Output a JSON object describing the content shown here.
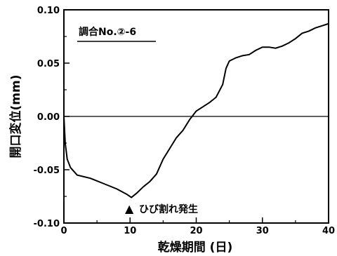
{
  "chart_data": {
    "type": "line",
    "title": "",
    "xlabel": "乾燥期間 (日)",
    "ylabel": "開口変位(mm)",
    "xlim": [
      0,
      40
    ],
    "ylim": [
      -0.1,
      0.1
    ],
    "xticks": [
      0,
      10,
      20,
      30,
      40
    ],
    "xtick_labels": [
      "0",
      "10",
      "20",
      "30",
      "40"
    ],
    "yticks": [
      -0.1,
      -0.05,
      0.0,
      0.05,
      0.1
    ],
    "ytick_labels": [
      "-0.10",
      "-0.05",
      "0.00",
      "0.05",
      "0.10"
    ],
    "grid": false,
    "reference_line_y": 0.0,
    "legend_text": "調合No.②-6",
    "annotation": {
      "marker": "▲",
      "text": "ひび割れ発生",
      "x": 10.2
    },
    "series": [
      {
        "x": [
          0,
          0.2,
          0.5,
          1.0,
          2.0,
          4.0,
          6.0,
          8.0,
          9.5,
          10.2,
          11.0,
          12.0,
          13.0,
          14.0,
          15.0,
          16.0,
          17.0,
          18.0,
          19.0,
          20.0,
          21.0,
          22.0,
          23.0,
          24.0,
          24.5,
          25.0,
          26.0,
          27.0,
          28.0,
          29.0,
          30.0,
          31.0,
          32.0,
          33.0,
          34.0,
          35.0,
          36.0,
          37.0,
          38.0,
          39.0,
          40.0
        ],
        "y": [
          0.0,
          -0.025,
          -0.04,
          -0.048,
          -0.055,
          -0.058,
          -0.063,
          -0.068,
          -0.073,
          -0.076,
          -0.072,
          -0.066,
          -0.061,
          -0.054,
          -0.04,
          -0.03,
          -0.02,
          -0.013,
          -0.003,
          0.005,
          0.009,
          0.013,
          0.018,
          0.03,
          0.045,
          0.052,
          0.055,
          0.057,
          0.058,
          0.062,
          0.065,
          0.065,
          0.064,
          0.066,
          0.069,
          0.073,
          0.078,
          0.08,
          0.083,
          0.085,
          0.087
        ]
      }
    ]
  }
}
